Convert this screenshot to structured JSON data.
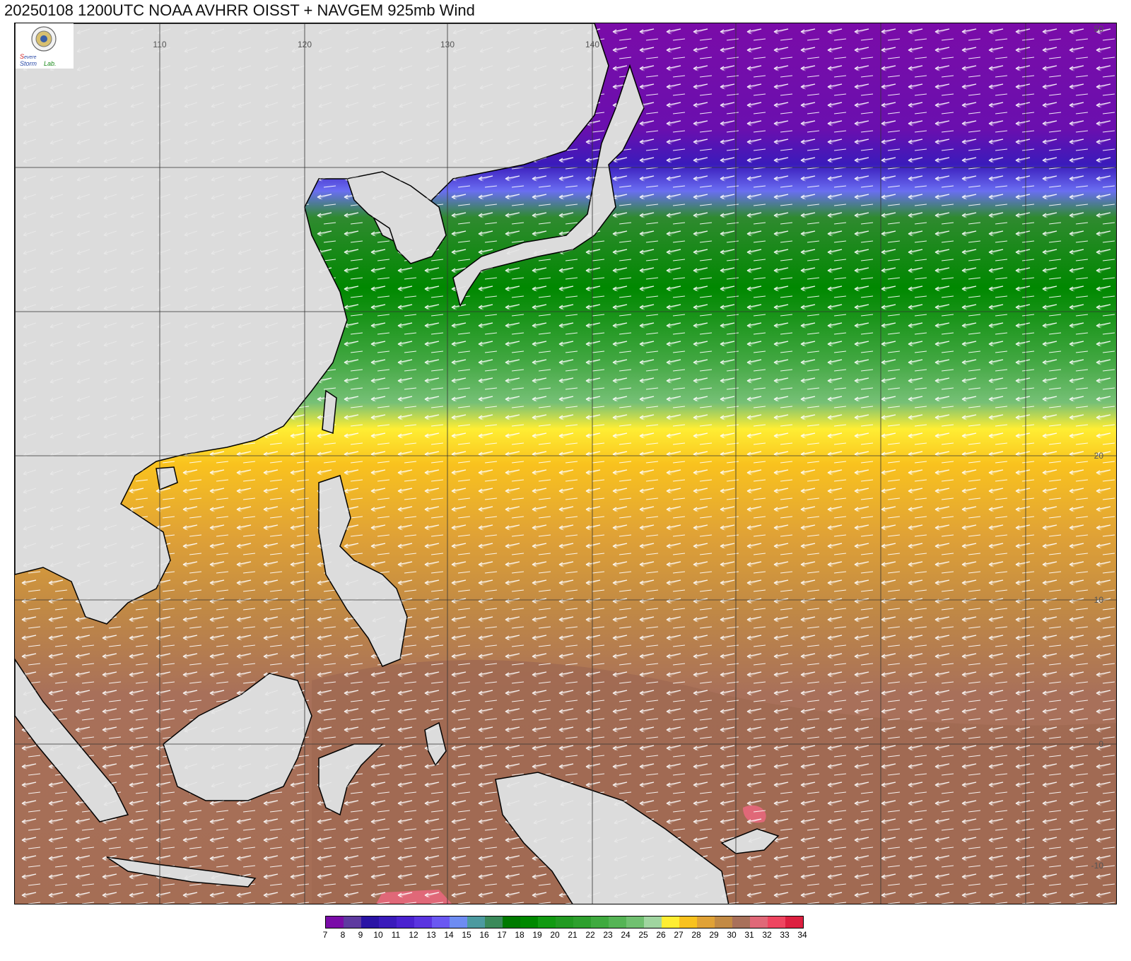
{
  "title": "20250108 1200UTC NOAA AVHRR OISST + NAVGEM 925mb Wind",
  "logo": {
    "text_top": "Severe",
    "text_mid": "Storm",
    "text_end": "Lab."
  },
  "map": {
    "lon_labels": [
      "110",
      "120",
      "130",
      "140"
    ],
    "lat_labels": [
      "50",
      "20",
      "10",
      "0",
      "-10"
    ]
  },
  "colorbar": {
    "labels": [
      "7",
      "8",
      "9",
      "10",
      "11",
      "12",
      "13",
      "14",
      "15",
      "16",
      "17",
      "18",
      "19",
      "20",
      "21",
      "22",
      "23",
      "24",
      "25",
      "26",
      "27",
      "28",
      "29",
      "30",
      "31",
      "32",
      "33",
      "34"
    ],
    "colors": [
      "#7a0ca8",
      "#5e3aa0",
      "#2a13a5",
      "#3a1bbb",
      "#4a22d0",
      "#5a34e0",
      "#6a58f2",
      "#6e8cf2",
      "#4c9aa0",
      "#3a8a5a",
      "#007a00",
      "#008800",
      "#129a12",
      "#229a22",
      "#2ea02e",
      "#3faa3f",
      "#55b455",
      "#70c070",
      "#a0d5a0",
      "#ffee33",
      "#f9c21e",
      "#e0a236",
      "#c28a44",
      "#a8705a",
      "#e06878",
      "#ee4560",
      "#dd2040"
    ]
  }
}
